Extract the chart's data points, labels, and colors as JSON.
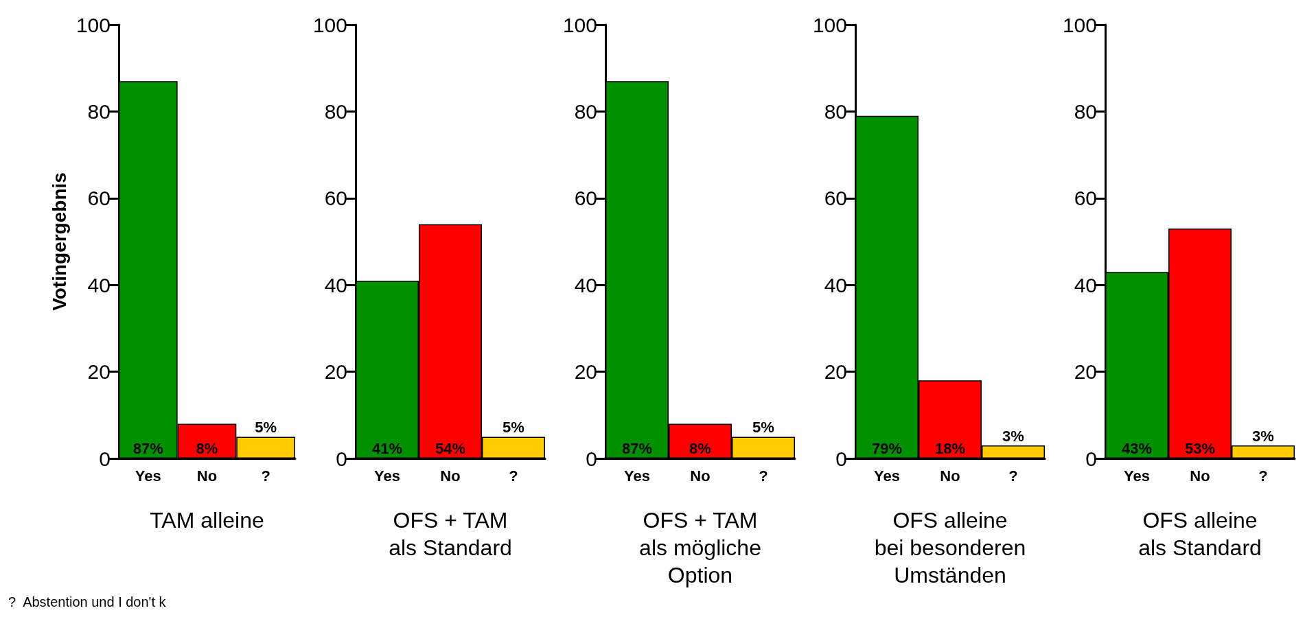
{
  "chart_data": [
    {
      "type": "bar",
      "xlabel": "TAM alleine",
      "ylabel": "Votingergebnis",
      "categories": [
        "Yes",
        "No",
        "?"
      ],
      "values": [
        87,
        8,
        5
      ],
      "colors": [
        "#009000",
        "#ff0000",
        "#ffcc00"
      ],
      "value_labels": [
        "87%",
        "8%",
        "5%"
      ],
      "ylim": [
        0,
        100
      ],
      "yticks": [
        0,
        20,
        40,
        60,
        80,
        100
      ],
      "annotations": [
        "?  Abstention und I don't k"
      ]
    },
    {
      "type": "bar",
      "xlabel": "OFS + TAM\nals Standard",
      "categories": [
        "Yes",
        "No",
        "?"
      ],
      "values": [
        41,
        54,
        5
      ],
      "colors": [
        "#009000",
        "#ff0000",
        "#ffcc00"
      ],
      "value_labels": [
        "41%",
        "54%",
        "5%"
      ],
      "ylim": [
        0,
        100
      ],
      "yticks": [
        0,
        20,
        40,
        60,
        80,
        100
      ]
    },
    {
      "type": "bar",
      "xlabel": "OFS + TAM\nals mögliche\nOption",
      "categories": [
        "Yes",
        "No",
        "?"
      ],
      "values": [
        87,
        8,
        5
      ],
      "colors": [
        "#009000",
        "#ff0000",
        "#ffcc00"
      ],
      "value_labels": [
        "87%",
        "8%",
        "5%"
      ],
      "ylim": [
        0,
        100
      ],
      "yticks": [
        0,
        20,
        40,
        60,
        80,
        100
      ]
    },
    {
      "type": "bar",
      "xlabel": "OFS alleine\nbei besonderen\nUmständen",
      "categories": [
        "Yes",
        "No",
        "?"
      ],
      "values": [
        79,
        18,
        3
      ],
      "colors": [
        "#009000",
        "#ff0000",
        "#ffcc00"
      ],
      "value_labels": [
        "79%",
        "18%",
        "3%"
      ],
      "ylim": [
        0,
        100
      ],
      "yticks": [
        0,
        20,
        40,
        60,
        80,
        100
      ]
    },
    {
      "type": "bar",
      "xlabel": "OFS alleine\nals Standard",
      "categories": [
        "Yes",
        "No",
        "?"
      ],
      "values": [
        43,
        53,
        3
      ],
      "colors": [
        "#009000",
        "#ff0000",
        "#ffcc00"
      ],
      "value_labels": [
        "43%",
        "53%",
        "3%"
      ],
      "ylim": [
        0,
        100
      ],
      "yticks": [
        0,
        20,
        40,
        60,
        80,
        100
      ]
    }
  ]
}
